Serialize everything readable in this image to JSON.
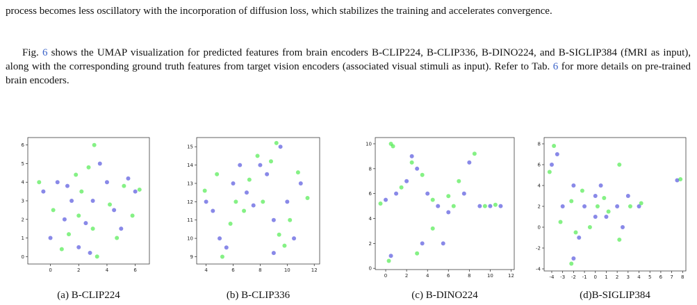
{
  "text": {
    "top_line": "process becomes less oscillatory with the incorporation of diffusion loss, which stabilizes the training and accelerates convergence.",
    "paragraph": [
      "Fig. ",
      "6",
      " shows the UMAP visualization for predicted features from brain encoders B-CLIP224, B-CLIP336, B-DINO224, and B-SIGLIP384 (fMRI as input), along with the corresponding ground truth features from target vision encoders (associated visual stimuli as input). Refer to Tab. ",
      "6",
      " for more details on pre-trained brain encoders."
    ]
  },
  "chart_data": [
    {
      "type": "scatter",
      "caption": "(a) B-CLIP224",
      "xlim": [
        -1.6,
        7
      ],
      "ylim": [
        -0.4,
        6.4
      ],
      "xticks": [
        0,
        2,
        4,
        6
      ],
      "yticks": [
        0,
        1,
        2,
        3,
        4,
        5,
        6
      ],
      "series": [
        {
          "color": "#3b3bd8",
          "x": [
            0,
            1,
            2,
            3,
            4,
            5,
            6,
            0.5,
            1.5,
            2.5,
            3.5,
            4.5,
            5.5,
            -0.5,
            2.8,
            1.2
          ],
          "values": [
            1,
            2,
            0.5,
            3,
            4,
            1.5,
            3.5,
            4,
            3,
            1.8,
            5,
            2.5,
            4.2,
            3.5,
            0.2,
            3.8
          ]
        },
        {
          "color": "#33e833",
          "x": [
            0.2,
            1.3,
            2.2,
            3.1,
            4.2,
            5.2,
            6.3,
            0.8,
            1.8,
            2.7,
            3.3,
            4.7,
            5.8,
            -0.8,
            3.0,
            2.0
          ],
          "values": [
            2.5,
            1.2,
            3.5,
            6,
            2.8,
            3.8,
            3.6,
            0.4,
            4.4,
            4.8,
            0,
            1,
            2.2,
            4,
            1.5,
            2.2
          ]
        }
      ]
    },
    {
      "type": "scatter",
      "caption": "(b) B-CLIP336",
      "xlim": [
        3.3,
        12.4
      ],
      "ylim": [
        8.6,
        15.5
      ],
      "xticks": [
        4,
        6,
        8,
        10,
        12
      ],
      "yticks": [
        9,
        10,
        11,
        12,
        13,
        14,
        15
      ],
      "series": [
        {
          "color": "#3b3bd8",
          "x": [
            4,
            5,
            6,
            7,
            8,
            9,
            10,
            11,
            4.5,
            5.5,
            8.5,
            9.5,
            10.5,
            6.5,
            7.5,
            9
          ],
          "values": [
            12,
            10,
            13,
            12.5,
            14,
            11,
            12,
            13,
            11.5,
            9.5,
            13.5,
            15,
            10,
            14,
            11.8,
            9.2
          ]
        },
        {
          "color": "#33e833",
          "x": [
            3.9,
            5.2,
            6.2,
            7.2,
            8.2,
            9.2,
            10.2,
            11.5,
            4.8,
            5.8,
            8.8,
            9.8,
            10.8,
            6.8,
            7.8,
            9.4
          ],
          "values": [
            12.6,
            9,
            12,
            13.2,
            12,
            15.2,
            11,
            12.2,
            13.5,
            10.8,
            14.2,
            9.6,
            13.6,
            11.5,
            14.5,
            10.2
          ]
        }
      ]
    },
    {
      "type": "scatter",
      "caption": "(c) B-DINO224",
      "xlim": [
        -1,
        12.3
      ],
      "ylim": [
        -0.1,
        10.5
      ],
      "xticks": [
        0,
        2,
        4,
        6,
        8,
        10,
        12
      ],
      "yticks": [
        0,
        2,
        4,
        6,
        8,
        10
      ],
      "series": [
        {
          "color": "#3b3bd8",
          "x": [
            0,
            1,
            2,
            3,
            4,
            5,
            6,
            8,
            9,
            10,
            11,
            0.5,
            2.5,
            3.5,
            5.5,
            7.5
          ],
          "values": [
            5.5,
            6,
            7,
            8,
            6,
            5,
            4.5,
            8.5,
            5,
            5,
            5,
            1,
            9,
            2,
            2,
            6
          ]
        },
        {
          "color": "#33e833",
          "x": [
            -0.5,
            0.5,
            1.5,
            2.5,
            3.5,
            4.5,
            6.5,
            7,
            8.5,
            9.5,
            10.5,
            0.3,
            0.7,
            3,
            4.5,
            6
          ],
          "values": [
            5.2,
            10,
            6.5,
            8.5,
            7.5,
            5.5,
            5,
            7,
            9.2,
            5,
            5.1,
            0.6,
            9.8,
            1.2,
            3.2,
            5.8
          ]
        }
      ]
    },
    {
      "type": "scatter",
      "caption": "(d)B-SIGLIP384",
      "xlim": [
        -4.7,
        8.3
      ],
      "ylim": [
        -4.2,
        8.6
      ],
      "xticks": [
        -4,
        -3,
        -2,
        -1,
        0,
        1,
        2,
        3,
        4,
        5,
        6,
        7,
        8
      ],
      "yticks": [
        -4,
        -2,
        0,
        2,
        4,
        6,
        8
      ],
      "series": [
        {
          "color": "#3b3bd8",
          "x": [
            -4,
            -3,
            -2,
            -1,
            0,
            1,
            2,
            3,
            4,
            -3.5,
            -1.5,
            0.5,
            2.5,
            7.5,
            -2,
            0
          ],
          "values": [
            6,
            2,
            4,
            2,
            3,
            1,
            2,
            3,
            2,
            7,
            -1,
            4,
            0,
            4.5,
            -3,
            1
          ]
        },
        {
          "color": "#33e833",
          "x": [
            -4.2,
            -3.2,
            -2.2,
            -1.2,
            0.2,
            1.2,
            2.2,
            3.2,
            4.2,
            -3.8,
            -1.8,
            0.8,
            2.2,
            7.8,
            -2.2,
            -0.5
          ],
          "values": [
            5.3,
            0.5,
            2.5,
            3.5,
            2,
            1.5,
            6,
            2,
            2.3,
            7.8,
            -0.5,
            2.8,
            -1.2,
            4.6,
            -3.5,
            0
          ]
        }
      ]
    }
  ]
}
